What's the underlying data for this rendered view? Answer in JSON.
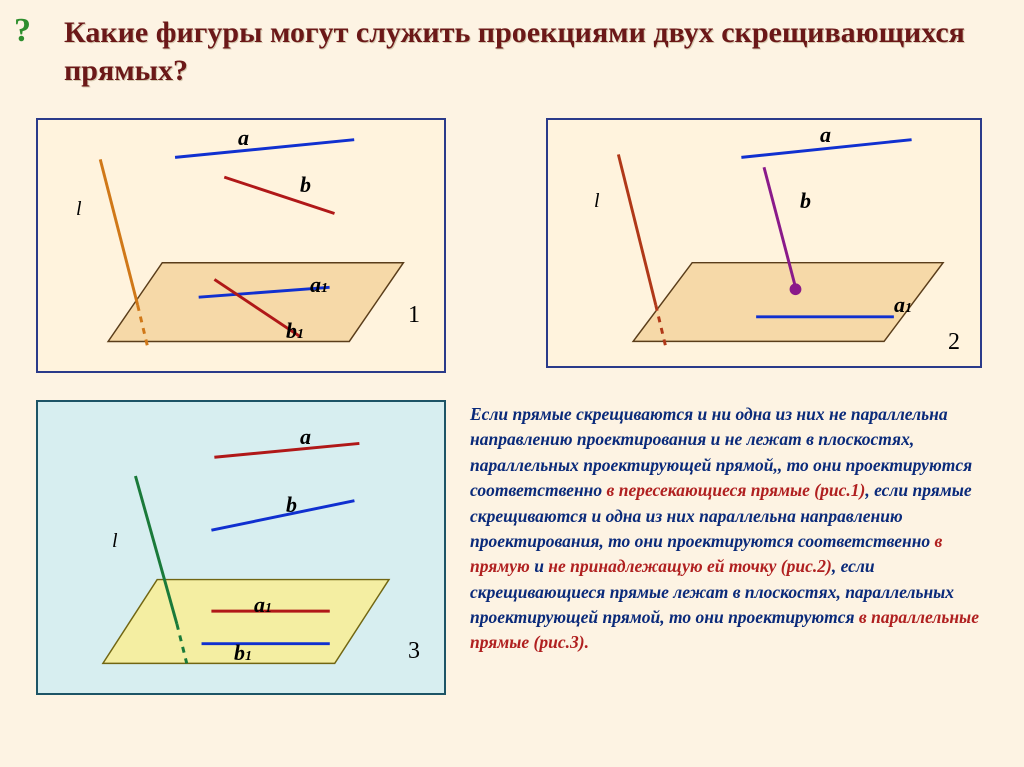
{
  "question_mark": "?",
  "title": "Какие фигуры могут служить проекциями двух скрещивающихся прямых?",
  "panels": {
    "p1": {
      "bg": "#fff3dd",
      "border": "#2a3a8a",
      "labels": {
        "a": "a",
        "b": "b",
        "l": "l",
        "a1": "a",
        "a1_sub": "1",
        "b1": "b",
        "b1_sub": "1"
      },
      "number": "1",
      "plane_fill": "#f6d9a8",
      "plane_stroke": "#5a3d1a",
      "lines": {
        "a": {
          "stroke": "#1030d0",
          "width": 3
        },
        "b": {
          "stroke": "#b01818",
          "width": 3
        },
        "l": {
          "stroke": "#d07818",
          "width": 3,
          "dash_below": true
        },
        "a1": {
          "stroke": "#1030d0",
          "width": 3
        },
        "b1": {
          "stroke": "#b01818",
          "width": 3
        }
      }
    },
    "p2": {
      "bg": "#fff3dd",
      "border": "#2a3a8a",
      "labels": {
        "a": "a",
        "b": "b",
        "l": "l",
        "a1": "a",
        "a1_sub": "1"
      },
      "number": "2",
      "plane_fill": "#f6d9a8",
      "plane_stroke": "#5a3d1a",
      "lines": {
        "a": {
          "stroke": "#1030d0",
          "width": 3
        },
        "b": {
          "stroke": "#8a1a8a",
          "width": 3
        },
        "l": {
          "stroke": "#b03818",
          "width": 3,
          "dash_below": true
        },
        "a1": {
          "stroke": "#1030d0",
          "width": 3
        }
      },
      "point_color": "#8a1a8a",
      "point_radius": 6
    },
    "p3": {
      "bg": "#d7eef0",
      "border": "#1d5466",
      "labels": {
        "a": "a",
        "b": "b",
        "l": "l",
        "a1": "a",
        "a1_sub": "1",
        "b1": "b",
        "b1_sub": "1"
      },
      "number": "3",
      "plane_fill": "#f4eea2",
      "plane_stroke": "#716612",
      "lines": {
        "a": {
          "stroke": "#b01818",
          "width": 3
        },
        "b": {
          "stroke": "#1030d0",
          "width": 3
        },
        "l": {
          "stroke": "#1a7a3a",
          "width": 3,
          "dash_below": true
        },
        "a1": {
          "stroke": "#b01818",
          "width": 3
        },
        "b1": {
          "stroke": "#1030d0",
          "width": 3
        }
      }
    }
  },
  "caption": {
    "runs": [
      {
        "t": "Если прямые скрещиваются и ни одна из них не параллельна направлению проектирования и не лежат в плоскостях, параллельных проектирующей прямой,, то они проектируются соответственно "
      },
      {
        "t": "в пересекающиеся прямые (рис.1)",
        "em": true
      },
      {
        "t": ", если прямые скрещиваются и одна из них параллельна направлению проектирования, то они проектируются соответственно "
      },
      {
        "t": "в прямую",
        "em": true
      },
      {
        "t": " и "
      },
      {
        "t": "не принадлежащую ей точку (рис.2)",
        "em": true
      },
      {
        "t": ", если скрещивающиеся прямые лежат в плоскостях, параллельных проектирующей прямой, то они проектируются "
      },
      {
        "t": "в параллельные прямые (рис.3).",
        "em": true
      }
    ]
  }
}
